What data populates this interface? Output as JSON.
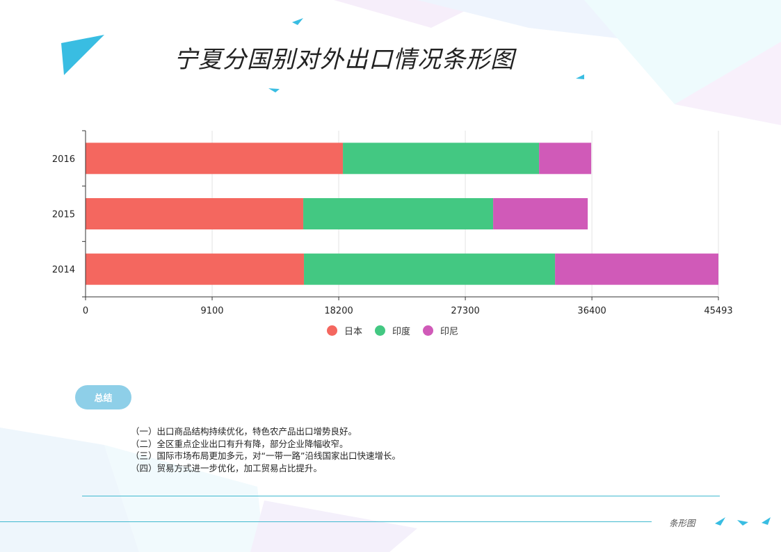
{
  "page": {
    "title": "宁夏分国别对外出口情况条形图",
    "summary_label": "总结",
    "summary_lines": [
      "（一）出口商品结构持续优化，特色农产品出口增势良好。",
      "（二）全区重点企业出口有升有降，部分企业降幅收窄。",
      "（三）国际市场布局更加多元，对“一带一路”沿线国家出口快速增长。",
      "（四）贸易方式进一步优化，加工贸易占比提升。"
    ],
    "footer_label": "条形图"
  },
  "colors": {
    "accent": "#3fb9cf",
    "triangle": "#2bb5e0",
    "pill": "#8ecfe8"
  },
  "chart_data": {
    "type": "bar",
    "orientation": "horizontal",
    "stacked": true,
    "categories": [
      "2014",
      "2015",
      "2016"
    ],
    "series": [
      {
        "name": "日本",
        "color": "#f4675f",
        "values": [
          15700,
          15650,
          18500
        ]
      },
      {
        "name": "印度",
        "color": "#43c882",
        "values": [
          18050,
          13650,
          14100
        ]
      },
      {
        "name": "印尼",
        "color": "#d05ab8",
        "values": [
          11743,
          6800,
          3750
        ]
      }
    ],
    "xlim": [
      0,
      45493
    ],
    "x_ticks": [
      "0",
      "9100",
      "18200",
      "27300",
      "36400",
      "45493"
    ],
    "x_tick_values": [
      0,
      9100,
      18200,
      27300,
      36400,
      45493
    ],
    "grid": true,
    "legend_position": "bottom"
  }
}
